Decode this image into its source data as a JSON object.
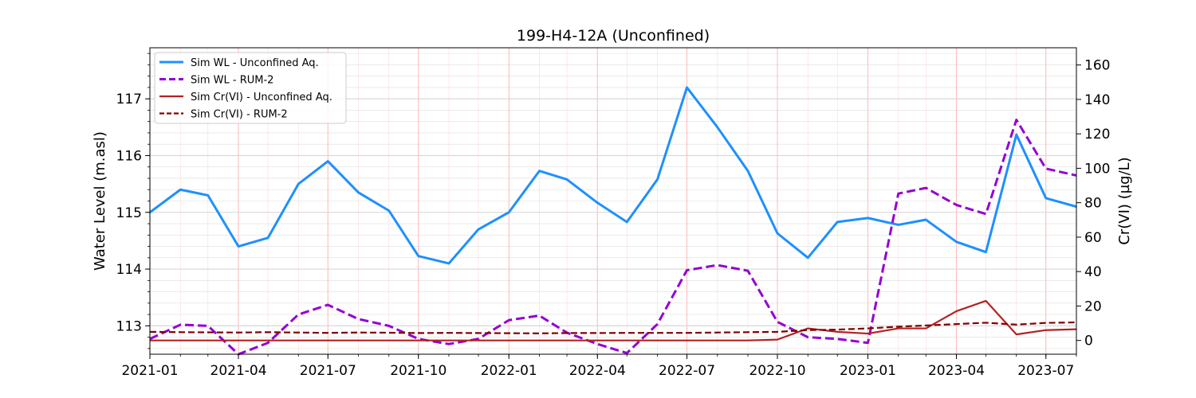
{
  "chart_data": {
    "type": "line",
    "title": "199-H4-12A (Unconfined)",
    "xlabel": "",
    "ylabel_left": "Water Level (m.asl)",
    "ylabel_right": "Cr(VI) (µg/L)",
    "x_dates": [
      "2021-01-01",
      "2021-02-01",
      "2021-03-01",
      "2021-04-01",
      "2021-05-01",
      "2021-06-01",
      "2021-07-01",
      "2021-08-01",
      "2021-09-01",
      "2021-10-01",
      "2021-11-01",
      "2021-12-01",
      "2022-01-01",
      "2022-02-01",
      "2022-03-01",
      "2022-04-01",
      "2022-05-01",
      "2022-06-01",
      "2022-07-01",
      "2022-08-01",
      "2022-09-01",
      "2022-10-01",
      "2022-11-01",
      "2022-12-01",
      "2023-01-01",
      "2023-02-01",
      "2023-03-01",
      "2023-04-01",
      "2023-05-01",
      "2023-06-01",
      "2023-07-01",
      "2023-08-01"
    ],
    "xlim": [
      "2021-01-01",
      "2023-08-01"
    ],
    "x_tick_dates": [
      "2021-01-01",
      "2021-04-01",
      "2021-07-01",
      "2021-10-01",
      "2022-01-01",
      "2022-04-01",
      "2022-07-01",
      "2022-10-01",
      "2023-01-01",
      "2023-04-01",
      "2023-07-01"
    ],
    "x_tick_labels": [
      "2021-01",
      "2021-04",
      "2021-07",
      "2021-10",
      "2022-01",
      "2022-04",
      "2022-07",
      "2022-10",
      "2023-01",
      "2023-04",
      "2023-07"
    ],
    "ylim_left": [
      112.5,
      117.9
    ],
    "yticks_left": [
      113,
      114,
      115,
      116,
      117
    ],
    "ylim_right": [
      -8,
      170
    ],
    "yticks_right": [
      0,
      20,
      40,
      60,
      80,
      100,
      120,
      140,
      160
    ],
    "grid": true,
    "legend_position": "upper left",
    "series": [
      {
        "name": "Sim WL - Unconfined Aq.",
        "axis": "left",
        "color": "#1e90ff",
        "style": "solid",
        "values": [
          115.0,
          115.4,
          115.3,
          114.4,
          114.55,
          115.5,
          115.9,
          115.35,
          115.03,
          114.23,
          114.1,
          114.7,
          115.0,
          115.73,
          115.58,
          115.17,
          114.83,
          115.58,
          117.2,
          116.5,
          115.73,
          114.63,
          114.2,
          114.83,
          114.9,
          114.78,
          114.87,
          114.48,
          114.3,
          116.37,
          115.25,
          115.1
        ]
      },
      {
        "name": "Sim WL - RUM-2",
        "axis": "left",
        "color": "#9400d3",
        "style": "dashed",
        "values": [
          112.77,
          113.02,
          113.0,
          112.5,
          112.7,
          113.2,
          113.37,
          113.12,
          113.0,
          112.77,
          112.68,
          112.77,
          113.1,
          113.18,
          112.88,
          112.68,
          112.52,
          113.03,
          113.98,
          114.07,
          113.97,
          113.07,
          112.8,
          112.77,
          112.7,
          115.33,
          115.43,
          115.13,
          114.97,
          116.63,
          115.77,
          115.65
        ]
      },
      {
        "name": "Sim Cr(VI) - Unconfined Aq.",
        "axis": "right",
        "color": "#b22222",
        "style": "solid",
        "values": [
          0,
          0,
          0,
          0,
          0,
          0,
          0,
          0,
          0,
          0,
          0,
          0,
          0,
          0,
          0,
          0,
          0,
          0,
          0,
          0,
          0,
          0.5,
          7,
          5,
          4,
          7,
          7,
          17,
          23,
          3.5,
          6,
          6.5
        ]
      },
      {
        "name": "Sim Cr(VI) - RUM-2",
        "axis": "right",
        "color": "#800000",
        "style": "dashed",
        "values": [
          5,
          4.8,
          4.7,
          4.6,
          4.8,
          4.6,
          4.4,
          4.6,
          4.5,
          4.3,
          4.4,
          4.3,
          4.2,
          4.1,
          4.3,
          4.3,
          4.4,
          4.4,
          4.4,
          4.6,
          4.8,
          5,
          6,
          6.3,
          7,
          8,
          8.7,
          9.5,
          10.3,
          9.2,
          10.2,
          10.5
        ]
      }
    ]
  }
}
